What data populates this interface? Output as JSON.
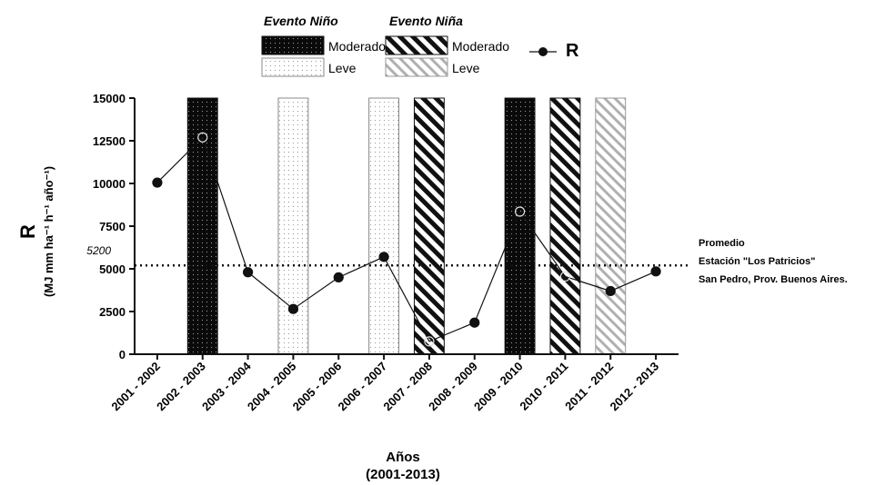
{
  "chart_data": {
    "type": "line",
    "ylabel": "R",
    "ylabel_units": "(MJ mm ha⁻¹ h⁻¹ año⁻¹)",
    "xlabel": "Años",
    "xlabel_sub": "(2001-2013)",
    "ylim": [
      0,
      15000
    ],
    "yticks": [
      "0",
      "2500",
      "5000",
      "7500",
      "10000",
      "12500",
      "15000"
    ],
    "grid": false,
    "categories": [
      "2001 - 2002",
      "2002 - 2003",
      "2003 - 2004",
      "2004 - 2005",
      "2005 - 2006",
      "2006 - 2007",
      "2007 - 2008",
      "2008 - 2009",
      "2009 - 2010",
      "2010 - 2011",
      "2011 - 2012",
      "2012 - 2013"
    ],
    "series": [
      {
        "name": "R",
        "values": [
          10050,
          12700,
          4800,
          2650,
          4500,
          5700,
          750,
          1850,
          8350,
          4550,
          3700,
          4850
        ]
      }
    ],
    "events": [
      {
        "category": "2002 - 2003",
        "type": "nino_moderado"
      },
      {
        "category": "2004 - 2005",
        "type": "nino_leve"
      },
      {
        "category": "2006 - 2007",
        "type": "nino_leve"
      },
      {
        "category": "2007 - 2008",
        "type": "nina_moderado"
      },
      {
        "category": "2009 - 2010",
        "type": "nino_moderado"
      },
      {
        "category": "2010 - 2011",
        "type": "nina_moderado"
      },
      {
        "category": "2011 - 2012",
        "type": "nina_leve"
      }
    ],
    "reference_line": {
      "value": 5200,
      "label": "5200",
      "note": [
        "Promedio",
        "Estación \"Los Patricios\"",
        "San Pedro, Prov.  Buenos  Aires."
      ]
    },
    "legend": {
      "placement": "top",
      "nino_title": "Evento Niño",
      "nina_title": "Evento Niña",
      "moderado": "Moderado",
      "leve": "Leve",
      "series_label": "R"
    }
  }
}
